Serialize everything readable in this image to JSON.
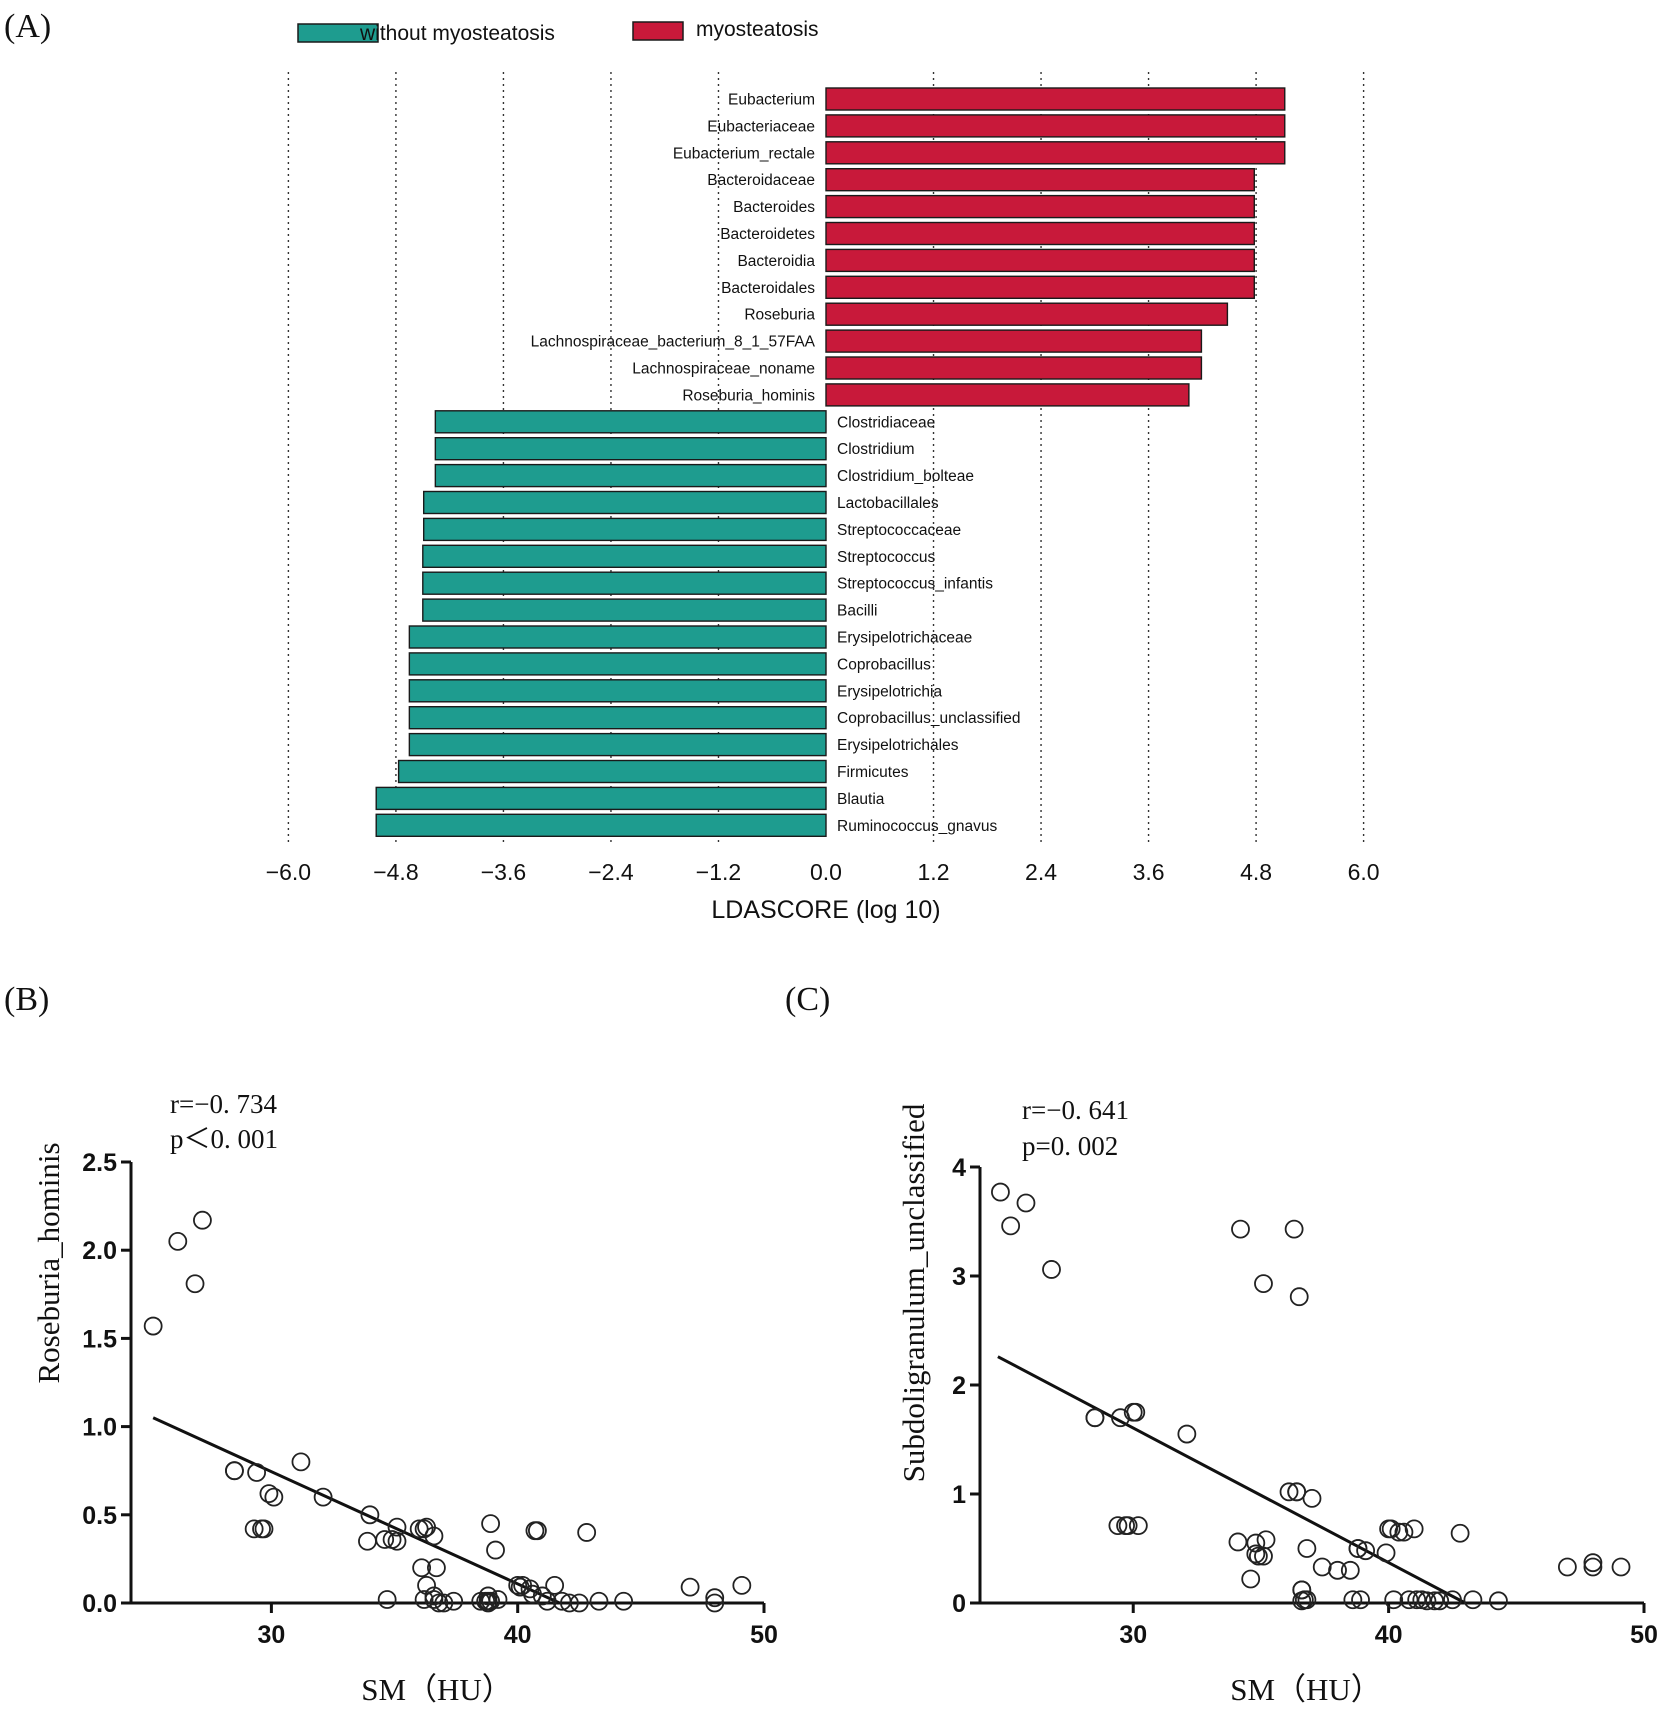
{
  "figure": {
    "panel_a_label": "(A)",
    "panel_b_label": "(B)",
    "panel_c_label": "(C)"
  },
  "colors": {
    "myosteatosis": "#c8193a",
    "without_myosteatosis": "#1e9c8f",
    "bar_stroke": "#1a1a1a",
    "points": "#222222"
  },
  "chart_data": [
    {
      "type": "bar",
      "orientation": "horizontal",
      "title": "",
      "xlabel": "LDASCORE (log 10)",
      "ylabel": "",
      "xlim": [
        -6.0,
        6.0
      ],
      "xticks": [
        "-6.0",
        "-4.8",
        "-3.6",
        "-2.4",
        "-1.2",
        "0.0",
        "1.2",
        "2.4",
        "3.6",
        "4.8",
        "6.0"
      ],
      "grid": "vertical dotted",
      "legend": [
        {
          "name": "without myosteatosis",
          "color_key": "without_myosteatosis"
        },
        {
          "name": "myosteatosis",
          "color_key": "myosteatosis"
        }
      ],
      "legend_position": "top",
      "categories": [
        "Eubacterium",
        "Eubacteriaceae",
        "Eubacterium_rectale",
        "Bacteroidaceae",
        "Bacteroides",
        "Bacteroidetes",
        "Bacteroidia",
        "Bacteroidales",
        "Roseburia",
        "Lachnospiraceae_bacterium_8_1_57FAA",
        "Lachnospiraceae_noname",
        "Roseburia_hominis",
        "Clostridiaceae",
        "Clostridium",
        "Clostridium_bolteae",
        "Lactobacillales",
        "Streptococcaceae",
        "Streptococcus",
        "Streptococcus_infantis",
        "Bacilli",
        "Erysipelotrichaceae",
        "Coprobacillus",
        "Erysipelotrichia",
        "Coprobacillus_unclassified",
        "Erysipelotrichales",
        "Firmicutes",
        "Blautia",
        "Ruminococcus_gnavus"
      ],
      "values": [
        5.12,
        5.12,
        5.12,
        4.78,
        4.78,
        4.78,
        4.78,
        4.78,
        4.48,
        4.19,
        4.19,
        4.05,
        -4.36,
        -4.36,
        -4.36,
        -4.49,
        -4.49,
        -4.5,
        -4.5,
        -4.5,
        -4.65,
        -4.65,
        -4.65,
        -4.65,
        -4.65,
        -4.77,
        -5.02,
        -5.02
      ],
      "groups": [
        "myosteatosis",
        "myosteatosis",
        "myosteatosis",
        "myosteatosis",
        "myosteatosis",
        "myosteatosis",
        "myosteatosis",
        "myosteatosis",
        "myosteatosis",
        "myosteatosis",
        "myosteatosis",
        "myosteatosis",
        "without myosteatosis",
        "without myosteatosis",
        "without myosteatosis",
        "without myosteatosis",
        "without myosteatosis",
        "without myosteatosis",
        "without myosteatosis",
        "without myosteatosis",
        "without myosteatosis",
        "without myosteatosis",
        "without myosteatosis",
        "without myosteatosis",
        "without myosteatosis",
        "without myosteatosis",
        "without myosteatosis",
        "without myosteatosis"
      ]
    },
    {
      "type": "scatter",
      "title": "",
      "xlabel": "SM（HU）",
      "ylabel": "Roseburia_hominis",
      "xlim": [
        24.3,
        50
      ],
      "ylim": [
        0,
        2.5
      ],
      "xticks": [
        "30",
        "40",
        "50"
      ],
      "yticks": [
        "0.0",
        "0.5",
        "1.0",
        "1.5",
        "2.0",
        "2.5"
      ],
      "stat_r": "r=−0. 734",
      "stat_p": "p＜0. 001",
      "regression": {
        "x": [
          25.2,
          41.7
        ],
        "y": [
          1.05,
          0.0
        ]
      },
      "x": [
        25.2,
        26.2,
        26.9,
        27.2,
        28.5,
        28.5,
        29.3,
        29.6,
        29.4,
        29.7,
        29.9,
        30.1,
        31.2,
        32.1,
        34.0,
        33.9,
        34.6,
        34.9,
        35.1,
        35.1,
        36.0,
        36.2,
        36.3,
        36.6,
        36.1,
        36.3,
        36.7,
        36.2,
        36.6,
        34.7,
        36.6,
        36.8,
        37.0,
        37.4,
        38.5,
        38.7,
        38.9,
        38.8,
        38.9,
        39.1,
        39.2,
        38.8,
        38.8,
        40.0,
        40.1,
        40.2,
        40.7,
        40.8,
        40.5,
        40.6,
        41.0,
        41.2,
        41.5,
        41.8,
        42.1,
        42.5,
        42.8,
        43.3,
        44.3,
        47.0,
        48.0,
        48.0,
        49.1
      ],
      "y": [
        1.57,
        2.05,
        1.81,
        2.17,
        0.75,
        0.75,
        0.42,
        0.42,
        0.74,
        0.42,
        0.62,
        0.6,
        0.8,
        0.6,
        0.5,
        0.35,
        0.36,
        0.36,
        0.43,
        0.35,
        0.42,
        0.42,
        0.43,
        0.38,
        0.2,
        0.1,
        0.2,
        0.02,
        0.02,
        0.02,
        0.04,
        0.0,
        0.0,
        0.01,
        0.01,
        0.01,
        0.01,
        0.0,
        0.45,
        0.3,
        0.02,
        0.04,
        0.01,
        0.1,
        0.09,
        0.1,
        0.41,
        0.41,
        0.08,
        0.05,
        0.04,
        0.01,
        0.1,
        0.01,
        0.0,
        0.0,
        0.4,
        0.01,
        0.01,
        0.09,
        0.03,
        0.0,
        0.1
      ]
    },
    {
      "type": "scatter",
      "title": "",
      "xlabel": "SM（HU）",
      "ylabel": "Subdoligranulum_unclassified",
      "xlim": [
        24,
        50
      ],
      "ylim": [
        0,
        4
      ],
      "xticks": [
        "30",
        "40",
        "50"
      ],
      "yticks": [
        "0",
        "1",
        "2",
        "3",
        "4"
      ],
      "stat_r": "r=−0. 641",
      "stat_p": "p=0. 002",
      "regression": {
        "x": [
          24.7,
          43.0
        ],
        "y": [
          2.26,
          0.0
        ]
      },
      "x": [
        24.8,
        25.2,
        25.8,
        26.8,
        28.5,
        28.5,
        29.4,
        29.5,
        29.7,
        29.8,
        30.0,
        30.1,
        30.2,
        32.1,
        34.1,
        34.2,
        34.6,
        34.8,
        34.8,
        34.9,
        35.1,
        35.2,
        35.1,
        36.1,
        36.3,
        36.4,
        36.5,
        36.4,
        36.6,
        36.6,
        36.7,
        36.8,
        36.8,
        36.6,
        37.0,
        37.4,
        38.0,
        38.5,
        38.6,
        38.8,
        38.8,
        38.9,
        39.1,
        39.9,
        40.0,
        40.1,
        40.2,
        40.4,
        40.6,
        40.8,
        41.1,
        41.0,
        41.3,
        41.5,
        41.8,
        42.0,
        42.5,
        42.8,
        43.3,
        44.3,
        47.0,
        48.0,
        48.0,
        49.1
      ],
      "y": [
        3.77,
        3.46,
        3.67,
        3.06,
        1.7,
        1.7,
        0.71,
        1.7,
        0.71,
        0.71,
        1.75,
        1.75,
        0.71,
        1.55,
        0.56,
        3.43,
        0.22,
        0.45,
        0.55,
        0.43,
        2.93,
        0.58,
        0.43,
        1.02,
        3.43,
        1.02,
        2.81,
        1.02,
        0.12,
        0.12,
        0.03,
        0.03,
        0.5,
        0.02,
        0.96,
        0.33,
        0.3,
        0.3,
        0.03,
        0.5,
        0.5,
        0.03,
        0.48,
        0.46,
        0.68,
        0.68,
        0.03,
        0.65,
        0.65,
        0.03,
        0.03,
        0.68,
        0.03,
        0.02,
        0.02,
        0.02,
        0.03,
        0.64,
        0.03,
        0.02,
        0.33,
        0.37,
        0.33,
        0.33
      ]
    }
  ]
}
